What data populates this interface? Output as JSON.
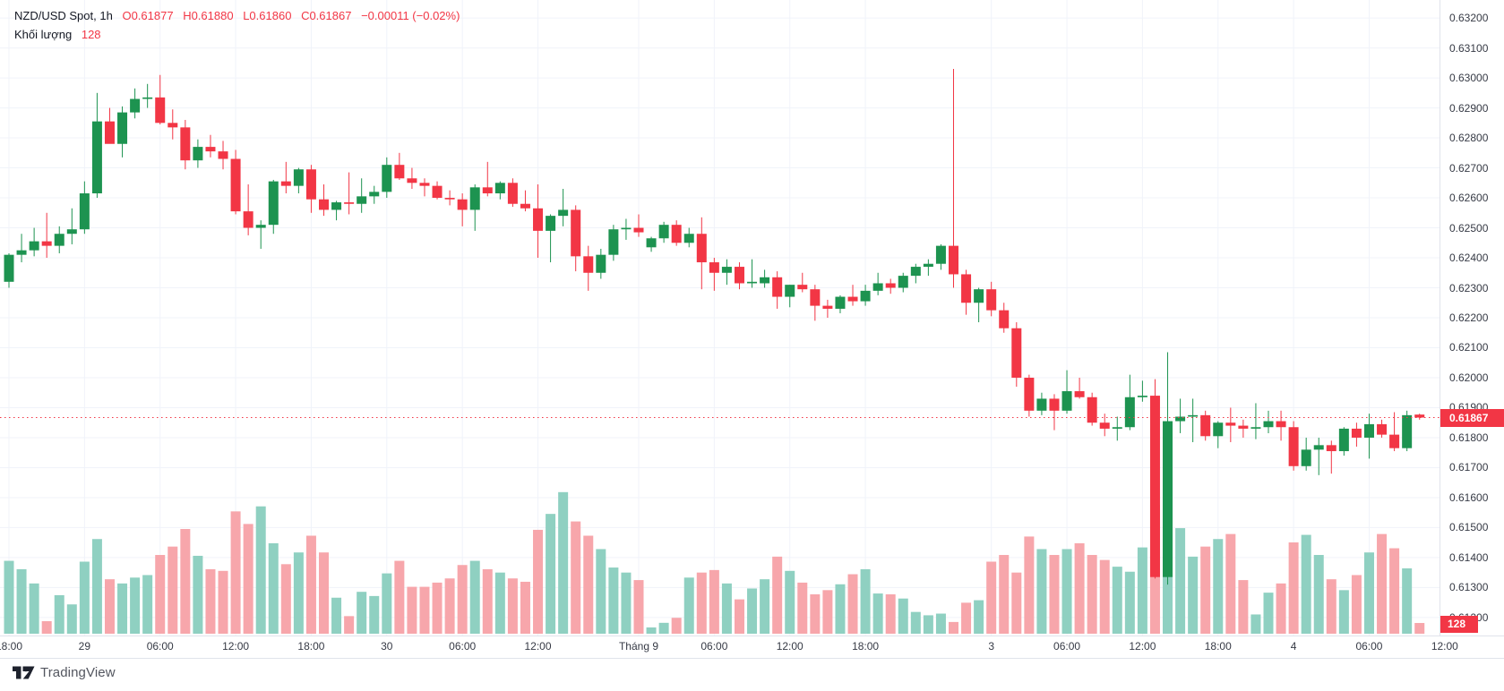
{
  "header": {
    "title": "NZD/USD Spot, 1h",
    "o": "O0.61877",
    "h": "H0.61880",
    "l": "L0.61860",
    "c": "C0.61867",
    "change": "−0.00011 (−0.02%)"
  },
  "legend": {
    "label": "Khối lượng",
    "value": "128"
  },
  "price_scale": {
    "labels": [
      "0.63200",
      "0.63100",
      "0.63000",
      "0.62900",
      "0.62800",
      "0.62700",
      "0.62600",
      "0.62500",
      "0.62400",
      "0.62300",
      "0.62200",
      "0.62100",
      "0.62000",
      "0.61900",
      "0.61800",
      "0.61700",
      "0.61600",
      "0.61500",
      "0.61400",
      "0.61300",
      "0.61200"
    ],
    "current_price_label": "0.61867",
    "current_volume_label": "128"
  },
  "attribution": {
    "text": "TradingView"
  },
  "colors": {
    "up": "#1d9350",
    "down": "#f23645",
    "volume_up": "#8fd0c1",
    "volume_down": "#f7a6ab",
    "grid": "#f0f3fa",
    "axis_text": "#363a45",
    "accent_red": "#f23645",
    "background": "#ffffff",
    "border": "#e0e3eb"
  },
  "chart_data": {
    "type": "candlestick",
    "title": "NZD/USD Spot",
    "interval": "1h",
    "legend_position": "top-left",
    "grid": true,
    "price_axis_range": [
      0.6114,
      0.6326
    ],
    "price_gridline_step": 0.001,
    "current_price": 0.61867,
    "current_volume": 128,
    "time_ticks": [
      {
        "i": 0,
        "label": "18:00"
      },
      {
        "i": 6,
        "label": "29"
      },
      {
        "i": 12,
        "label": "06:00"
      },
      {
        "i": 18,
        "label": "12:00"
      },
      {
        "i": 24,
        "label": "18:00"
      },
      {
        "i": 30,
        "label": "30"
      },
      {
        "i": 36,
        "label": "06:00"
      },
      {
        "i": 42,
        "label": "12:00"
      },
      {
        "i": 50,
        "label": "Tháng 9"
      },
      {
        "i": 56,
        "label": "06:00"
      },
      {
        "i": 62,
        "label": "12:00"
      },
      {
        "i": 68,
        "label": "18:00"
      },
      {
        "i": 78,
        "label": "3"
      },
      {
        "i": 84,
        "label": "06:00"
      },
      {
        "i": 90,
        "label": "12:00"
      },
      {
        "i": 96,
        "label": "18:00"
      },
      {
        "i": 102,
        "label": "4"
      },
      {
        "i": 108,
        "label": "06:00"
      },
      {
        "i": 114,
        "label": "12:00"
      }
    ],
    "candles_format": [
      "open",
      "high",
      "low",
      "close",
      "volume"
    ],
    "candles": [
      [
        0.6232,
        0.62415,
        0.623,
        0.6241,
        870
      ],
      [
        0.6241,
        0.6248,
        0.62385,
        0.62425,
        770
      ],
      [
        0.62425,
        0.625,
        0.62405,
        0.62455,
        600
      ],
      [
        0.62455,
        0.6255,
        0.624,
        0.6244,
        150
      ],
      [
        0.6244,
        0.62505,
        0.62415,
        0.6248,
        460
      ],
      [
        0.6248,
        0.62565,
        0.62445,
        0.62495,
        350
      ],
      [
        0.62495,
        0.62655,
        0.6248,
        0.62615,
        860
      ],
      [
        0.62615,
        0.6295,
        0.626,
        0.62855,
        1130
      ],
      [
        0.62855,
        0.629,
        0.62785,
        0.6278,
        650
      ],
      [
        0.6278,
        0.62905,
        0.62735,
        0.62885,
        600
      ],
      [
        0.62885,
        0.62965,
        0.62865,
        0.6293,
        670
      ],
      [
        0.6293,
        0.6298,
        0.629,
        0.62935,
        700
      ],
      [
        0.62935,
        0.6301,
        0.62845,
        0.6285,
        940
      ],
      [
        0.6285,
        0.62895,
        0.62795,
        0.62835,
        1040
      ],
      [
        0.62835,
        0.6286,
        0.62695,
        0.62725,
        1250
      ],
      [
        0.62725,
        0.62795,
        0.627,
        0.6277,
        930
      ],
      [
        0.6277,
        0.6281,
        0.62735,
        0.62755,
        770
      ],
      [
        0.62755,
        0.6279,
        0.62695,
        0.6273,
        750
      ],
      [
        0.6273,
        0.6276,
        0.62545,
        0.62555,
        1460
      ],
      [
        0.62555,
        0.62645,
        0.62475,
        0.625,
        1310
      ],
      [
        0.625,
        0.62525,
        0.6243,
        0.6251,
        1520
      ],
      [
        0.6251,
        0.6266,
        0.6248,
        0.62655,
        1080
      ],
      [
        0.62655,
        0.6272,
        0.62615,
        0.6264,
        830
      ],
      [
        0.6264,
        0.627,
        0.62615,
        0.62695,
        970
      ],
      [
        0.62695,
        0.6271,
        0.6255,
        0.62595,
        1170
      ],
      [
        0.62595,
        0.62645,
        0.6254,
        0.6256,
        970
      ],
      [
        0.6256,
        0.6259,
        0.62525,
        0.62585,
        430
      ],
      [
        0.62585,
        0.62685,
        0.62545,
        0.6258,
        210
      ],
      [
        0.6258,
        0.62665,
        0.6255,
        0.62605,
        500
      ],
      [
        0.62605,
        0.6264,
        0.6258,
        0.6262,
        450
      ],
      [
        0.6262,
        0.62735,
        0.626,
        0.6271,
        720
      ],
      [
        0.6271,
        0.6275,
        0.6266,
        0.62665,
        870
      ],
      [
        0.62665,
        0.627,
        0.6263,
        0.6265,
        560
      ],
      [
        0.6265,
        0.62665,
        0.62605,
        0.6264,
        560
      ],
      [
        0.6264,
        0.62655,
        0.62595,
        0.626,
        610
      ],
      [
        0.626,
        0.62625,
        0.62575,
        0.62595,
        660
      ],
      [
        0.62595,
        0.62615,
        0.62505,
        0.6256,
        820
      ],
      [
        0.6256,
        0.62645,
        0.6249,
        0.62635,
        870
      ],
      [
        0.62635,
        0.6272,
        0.62605,
        0.62615,
        770
      ],
      [
        0.62615,
        0.62655,
        0.62595,
        0.6265,
        730
      ],
      [
        0.6265,
        0.62665,
        0.6257,
        0.6258,
        660
      ],
      [
        0.6258,
        0.62625,
        0.62555,
        0.62565,
        620
      ],
      [
        0.62565,
        0.62645,
        0.624,
        0.6249,
        1240
      ],
      [
        0.6249,
        0.62545,
        0.62385,
        0.6254,
        1430
      ],
      [
        0.6254,
        0.6263,
        0.62505,
        0.6256,
        1690
      ],
      [
        0.6256,
        0.62575,
        0.62355,
        0.62405,
        1340
      ],
      [
        0.62405,
        0.6244,
        0.6229,
        0.6235,
        1170
      ],
      [
        0.6235,
        0.6243,
        0.6233,
        0.6241,
        1010
      ],
      [
        0.6241,
        0.6251,
        0.6239,
        0.62495,
        790
      ],
      [
        0.62495,
        0.6253,
        0.6246,
        0.625,
        730
      ],
      [
        0.625,
        0.62545,
        0.6247,
        0.62485,
        640
      ],
      [
        0.62435,
        0.6247,
        0.6242,
        0.62465,
        75
      ],
      [
        0.62465,
        0.6252,
        0.6245,
        0.6251,
        130
      ],
      [
        0.6251,
        0.62525,
        0.6244,
        0.6245,
        190
      ],
      [
        0.6245,
        0.625,
        0.62435,
        0.6248,
        670
      ],
      [
        0.6248,
        0.62535,
        0.62295,
        0.62385,
        730
      ],
      [
        0.62385,
        0.624,
        0.6229,
        0.6235,
        760
      ],
      [
        0.6235,
        0.62395,
        0.6231,
        0.6237,
        600
      ],
      [
        0.6237,
        0.62385,
        0.62295,
        0.62315,
        410
      ],
      [
        0.62315,
        0.62395,
        0.623,
        0.6232,
        540
      ],
      [
        0.62315,
        0.6236,
        0.623,
        0.62335,
        650
      ],
      [
        0.62335,
        0.62355,
        0.6223,
        0.6227,
        920
      ],
      [
        0.6227,
        0.6231,
        0.62235,
        0.6231,
        750
      ],
      [
        0.6231,
        0.6235,
        0.62285,
        0.62295,
        610
      ],
      [
        0.62295,
        0.6231,
        0.6219,
        0.6224,
        470
      ],
      [
        0.6224,
        0.6226,
        0.622,
        0.6223,
        520
      ],
      [
        0.6223,
        0.62275,
        0.62215,
        0.6227,
        590
      ],
      [
        0.6227,
        0.6231,
        0.6224,
        0.62255,
        710
      ],
      [
        0.62255,
        0.6231,
        0.6224,
        0.6229,
        770
      ],
      [
        0.6229,
        0.6235,
        0.62275,
        0.62315,
        480
      ],
      [
        0.62315,
        0.6233,
        0.6228,
        0.623,
        470
      ],
      [
        0.623,
        0.6235,
        0.62285,
        0.6234,
        420
      ],
      [
        0.6234,
        0.6238,
        0.62315,
        0.6237,
        260
      ],
      [
        0.6237,
        0.62395,
        0.6234,
        0.6238,
        220
      ],
      [
        0.6238,
        0.62445,
        0.6236,
        0.6244,
        240
      ],
      [
        0.6244,
        0.6303,
        0.623,
        0.62345,
        140
      ],
      [
        0.62345,
        0.6236,
        0.6221,
        0.6225,
        370
      ],
      [
        0.6225,
        0.623,
        0.62185,
        0.62295,
        400
      ],
      [
        0.62295,
        0.6232,
        0.62205,
        0.62225,
        860
      ],
      [
        0.62225,
        0.6225,
        0.6215,
        0.62165,
        940
      ],
      [
        0.62165,
        0.62185,
        0.6197,
        0.62,
        730
      ],
      [
        0.62,
        0.6201,
        0.6187,
        0.6189,
        1160
      ],
      [
        0.6189,
        0.6195,
        0.61875,
        0.6193,
        1010
      ],
      [
        0.6193,
        0.61945,
        0.61825,
        0.6189,
        940
      ],
      [
        0.6189,
        0.62025,
        0.6188,
        0.61955,
        1010
      ],
      [
        0.61955,
        0.62,
        0.6193,
        0.61935,
        1080
      ],
      [
        0.61935,
        0.6195,
        0.6184,
        0.6185,
        940
      ],
      [
        0.6185,
        0.6188,
        0.61805,
        0.6183,
        880
      ],
      [
        0.6183,
        0.6187,
        0.6179,
        0.61835,
        800
      ],
      [
        0.61835,
        0.6201,
        0.61825,
        0.61935,
        740
      ],
      [
        0.61935,
        0.6199,
        0.6192,
        0.6194,
        1030
      ],
      [
        0.6194,
        0.61995,
        0.6133,
        0.61335,
        1540
      ],
      [
        0.61335,
        0.62085,
        0.6131,
        0.61855,
        1870
      ],
      [
        0.61855,
        0.6193,
        0.61815,
        0.6187,
        1260
      ],
      [
        0.6187,
        0.6193,
        0.61785,
        0.61875,
        920
      ],
      [
        0.61875,
        0.6189,
        0.6179,
        0.61805,
        1040
      ],
      [
        0.61805,
        0.61855,
        0.61765,
        0.6185,
        1130
      ],
      [
        0.6185,
        0.619,
        0.61785,
        0.6184,
        1190
      ],
      [
        0.6184,
        0.6186,
        0.618,
        0.6183,
        640
      ],
      [
        0.6183,
        0.61915,
        0.61795,
        0.61835,
        230
      ],
      [
        0.61835,
        0.6189,
        0.61815,
        0.61855,
        490
      ],
      [
        0.61855,
        0.6189,
        0.6179,
        0.61835,
        600
      ],
      [
        0.61835,
        0.61855,
        0.6169,
        0.61705,
        1090
      ],
      [
        0.61705,
        0.618,
        0.6169,
        0.6176,
        1180
      ],
      [
        0.6176,
        0.618,
        0.61675,
        0.61775,
        940
      ],
      [
        0.61775,
        0.6179,
        0.6168,
        0.61755,
        650
      ],
      [
        0.61755,
        0.61835,
        0.6174,
        0.6183,
        520
      ],
      [
        0.6183,
        0.6185,
        0.6177,
        0.618,
        700
      ],
      [
        0.618,
        0.6188,
        0.6173,
        0.61845,
        970
      ],
      [
        0.61845,
        0.6186,
        0.618,
        0.6181,
        1190
      ],
      [
        0.6181,
        0.61885,
        0.61755,
        0.61765,
        1020
      ],
      [
        0.61765,
        0.6189,
        0.61755,
        0.61875,
        780
      ],
      [
        0.61877,
        0.6188,
        0.6186,
        0.61867,
        128
      ]
    ]
  }
}
